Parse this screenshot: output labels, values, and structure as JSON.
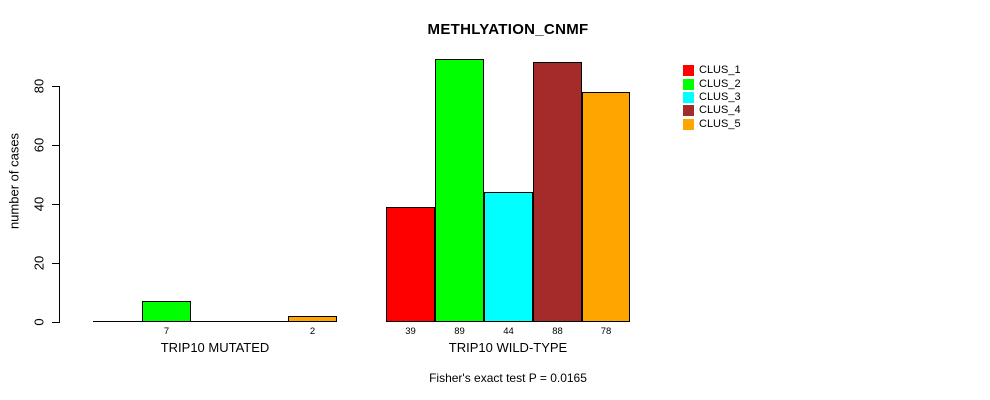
{
  "chart_data": {
    "type": "bar",
    "title": "METHLYATION_CNMF",
    "ylabel": "number of cases",
    "xlabel": "",
    "subtitle": "Fisher's exact test P = 0.0165",
    "yticks": [
      0,
      20,
      40,
      60,
      80
    ],
    "ylim": [
      0,
      89
    ],
    "grid": false,
    "legend_position": "right-inside",
    "bar_value_labels_shown": true,
    "zero_bars_unlabeled": true,
    "categories": [
      "TRIP10 MUTATED",
      "TRIP10 WILD-TYPE"
    ],
    "series": [
      {
        "name": "CLUS_1",
        "color": "#ff0000",
        "values": [
          0,
          39
        ]
      },
      {
        "name": "CLUS_2",
        "color": "#00ff00",
        "values": [
          7,
          89
        ]
      },
      {
        "name": "CLUS_3",
        "color": "#00ffff",
        "values": [
          0,
          44
        ]
      },
      {
        "name": "CLUS_4",
        "color": "#a52a2a",
        "values": [
          0,
          88
        ]
      },
      {
        "name": "CLUS_5",
        "color": "#ffa500",
        "values": [
          2,
          78
        ]
      }
    ],
    "axis_color": "#000000",
    "background_color": "#ffffff"
  }
}
